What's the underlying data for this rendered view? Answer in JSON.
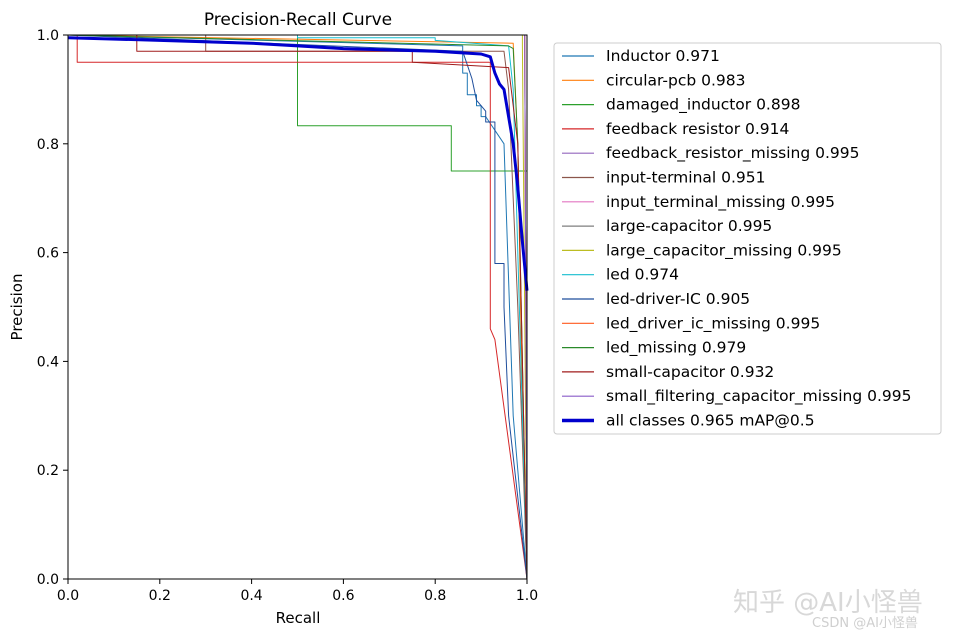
{
  "chart_data": {
    "type": "line",
    "title": "Precision-Recall Curve",
    "xlabel": "Recall",
    "ylabel": "Precision",
    "xlim": [
      0,
      1
    ],
    "ylim": [
      0,
      1
    ],
    "xticks": [
      "0.0",
      "0.2",
      "0.4",
      "0.6",
      "0.8",
      "1.0"
    ],
    "yticks": [
      "0.0",
      "0.2",
      "0.4",
      "0.6",
      "0.8",
      "1.0"
    ],
    "legend_position": "right",
    "series": [
      {
        "name": "Inductor",
        "value": "0.971",
        "label": "Inductor 0.971",
        "color": "#1f77b4",
        "x": [
          0,
          0.86,
          0.86,
          0.87,
          0.87,
          0.89,
          0.89,
          0.9,
          0.9,
          0.91,
          0.95,
          0.96,
          0.97,
          1.0
        ],
        "y": [
          1,
          0.98,
          0.93,
          0.93,
          0.89,
          0.89,
          0.87,
          0.87,
          0.85,
          0.85,
          0.8,
          0.55,
          0.3,
          0.0
        ]
      },
      {
        "name": "circular-pcb",
        "value": "0.983",
        "label": "circular-pcb 0.983",
        "color": "#ff7f0e",
        "x": [
          0,
          0.97,
          0.98,
          0.99,
          1.0
        ],
        "y": [
          1,
          0.985,
          0.8,
          0.3,
          0.0
        ]
      },
      {
        "name": "damaged_inductor",
        "value": "0.898",
        "label": "damaged_inductor 0.898",
        "color": "#2ca02c",
        "x": [
          0,
          0.5,
          0.5,
          0.835,
          0.835,
          1.0,
          1.0
        ],
        "y": [
          1,
          1,
          0.833,
          0.833,
          0.75,
          0.75,
          0.0
        ]
      },
      {
        "name": "feedback resistor",
        "value": "0.914",
        "label": "feedback resistor 0.914",
        "color": "#d62728",
        "x": [
          0,
          0.02,
          0.02,
          0.92,
          0.92,
          0.93,
          1.0
        ],
        "y": [
          1,
          1,
          0.95,
          0.95,
          0.46,
          0.44,
          0.0
        ]
      },
      {
        "name": "feedback_resistor_missing",
        "value": "0.995",
        "label": "feedback_resistor_missing 0.995",
        "color": "#9467bd",
        "x": [
          0,
          0.995,
          1.0
        ],
        "y": [
          1,
          1,
          0.0
        ]
      },
      {
        "name": "input-terminal",
        "value": "0.951",
        "label": "input-terminal 0.951",
        "color": "#8c564b",
        "x": [
          0,
          0.3,
          0.3,
          0.95,
          0.96,
          0.98,
          1.0
        ],
        "y": [
          1,
          1,
          0.97,
          0.97,
          0.9,
          0.5,
          0.0
        ]
      },
      {
        "name": "input_terminal_missing",
        "value": "0.995",
        "label": "input_terminal_missing 0.995",
        "color": "#e377c2",
        "x": [
          0,
          0.995,
          1.0
        ],
        "y": [
          1,
          1,
          0.0
        ]
      },
      {
        "name": "large-capacitor",
        "value": "0.995",
        "label": "large-capacitor 0.995",
        "color": "#7f7f7f",
        "x": [
          0,
          0.995,
          1.0
        ],
        "y": [
          1,
          1,
          0.0
        ]
      },
      {
        "name": "large_capacitor_missing",
        "value": "0.995",
        "label": "large_capacitor_missing 0.995",
        "color": "#bcbd22",
        "x": [
          0,
          0.99,
          0.99,
          1.0
        ],
        "y": [
          1,
          1,
          0.98,
          0.0
        ]
      },
      {
        "name": "led",
        "value": "0.974",
        "label": "led 0.974",
        "color": "#17becf",
        "x": [
          0,
          0.5,
          0.5,
          0.8,
          0.8,
          0.96,
          0.97,
          0.98,
          0.99,
          1.0
        ],
        "y": [
          1,
          1,
          0.995,
          0.995,
          0.99,
          0.98,
          0.9,
          0.6,
          0.3,
          0.0
        ]
      },
      {
        "name": "led-driver-IC",
        "value": "0.905",
        "label": "led-driver-IC 0.905",
        "color": "#1f4e9c",
        "x": [
          0,
          0.86,
          0.88,
          0.89,
          0.9,
          0.91,
          0.91,
          0.93,
          0.93,
          0.95,
          0.95,
          0.96,
          1.0
        ],
        "y": [
          1,
          0.97,
          0.92,
          0.88,
          0.87,
          0.86,
          0.84,
          0.84,
          0.58,
          0.58,
          0.5,
          0.3,
          0.0
        ]
      },
      {
        "name": "led_driver_ic_missing",
        "value": "0.995",
        "label": "led_driver_ic_missing 0.995",
        "color": "#ff5a1f",
        "x": [
          0,
          0.995,
          1.0
        ],
        "y": [
          1,
          1,
          0.0
        ]
      },
      {
        "name": "led_missing",
        "value": "0.979",
        "label": "led_missing 0.979",
        "color": "#2a8a2a",
        "x": [
          0,
          0.96,
          0.97,
          0.98,
          0.99,
          1.0
        ],
        "y": [
          1,
          0.98,
          0.975,
          0.8,
          0.4,
          0.0
        ]
      },
      {
        "name": "small-capacitor",
        "value": "0.932",
        "label": "small-capacitor 0.932",
        "color": "#a01c1c",
        "x": [
          0,
          0.15,
          0.15,
          0.75,
          0.75,
          0.96,
          0.98,
          1.0
        ],
        "y": [
          1,
          1,
          0.97,
          0.97,
          0.95,
          0.94,
          0.8,
          0.0
        ]
      },
      {
        "name": "small_filtering_capacitor_missing",
        "value": "0.995",
        "label": "small_filtering_capacitor_missing 0.995",
        "color": "#8a5cc9",
        "x": [
          0,
          0.995,
          1.0
        ],
        "y": [
          1,
          1,
          0.0
        ]
      },
      {
        "name": "all classes",
        "value": "0.965",
        "label": "all classes 0.965 mAP@0.5",
        "color": "#0000cd",
        "bold": true,
        "x": [
          0,
          0.2,
          0.4,
          0.5,
          0.6,
          0.8,
          0.9,
          0.92,
          0.93,
          0.94,
          0.95,
          0.96,
          0.97,
          0.98,
          0.99,
          1.0
        ],
        "y": [
          0.995,
          0.99,
          0.985,
          0.98,
          0.975,
          0.97,
          0.965,
          0.96,
          0.93,
          0.91,
          0.9,
          0.85,
          0.8,
          0.72,
          0.62,
          0.53
        ]
      }
    ]
  },
  "watermark": {
    "main": "知乎 @AI小怪兽",
    "sub": "CSDN @AI小怪兽"
  }
}
